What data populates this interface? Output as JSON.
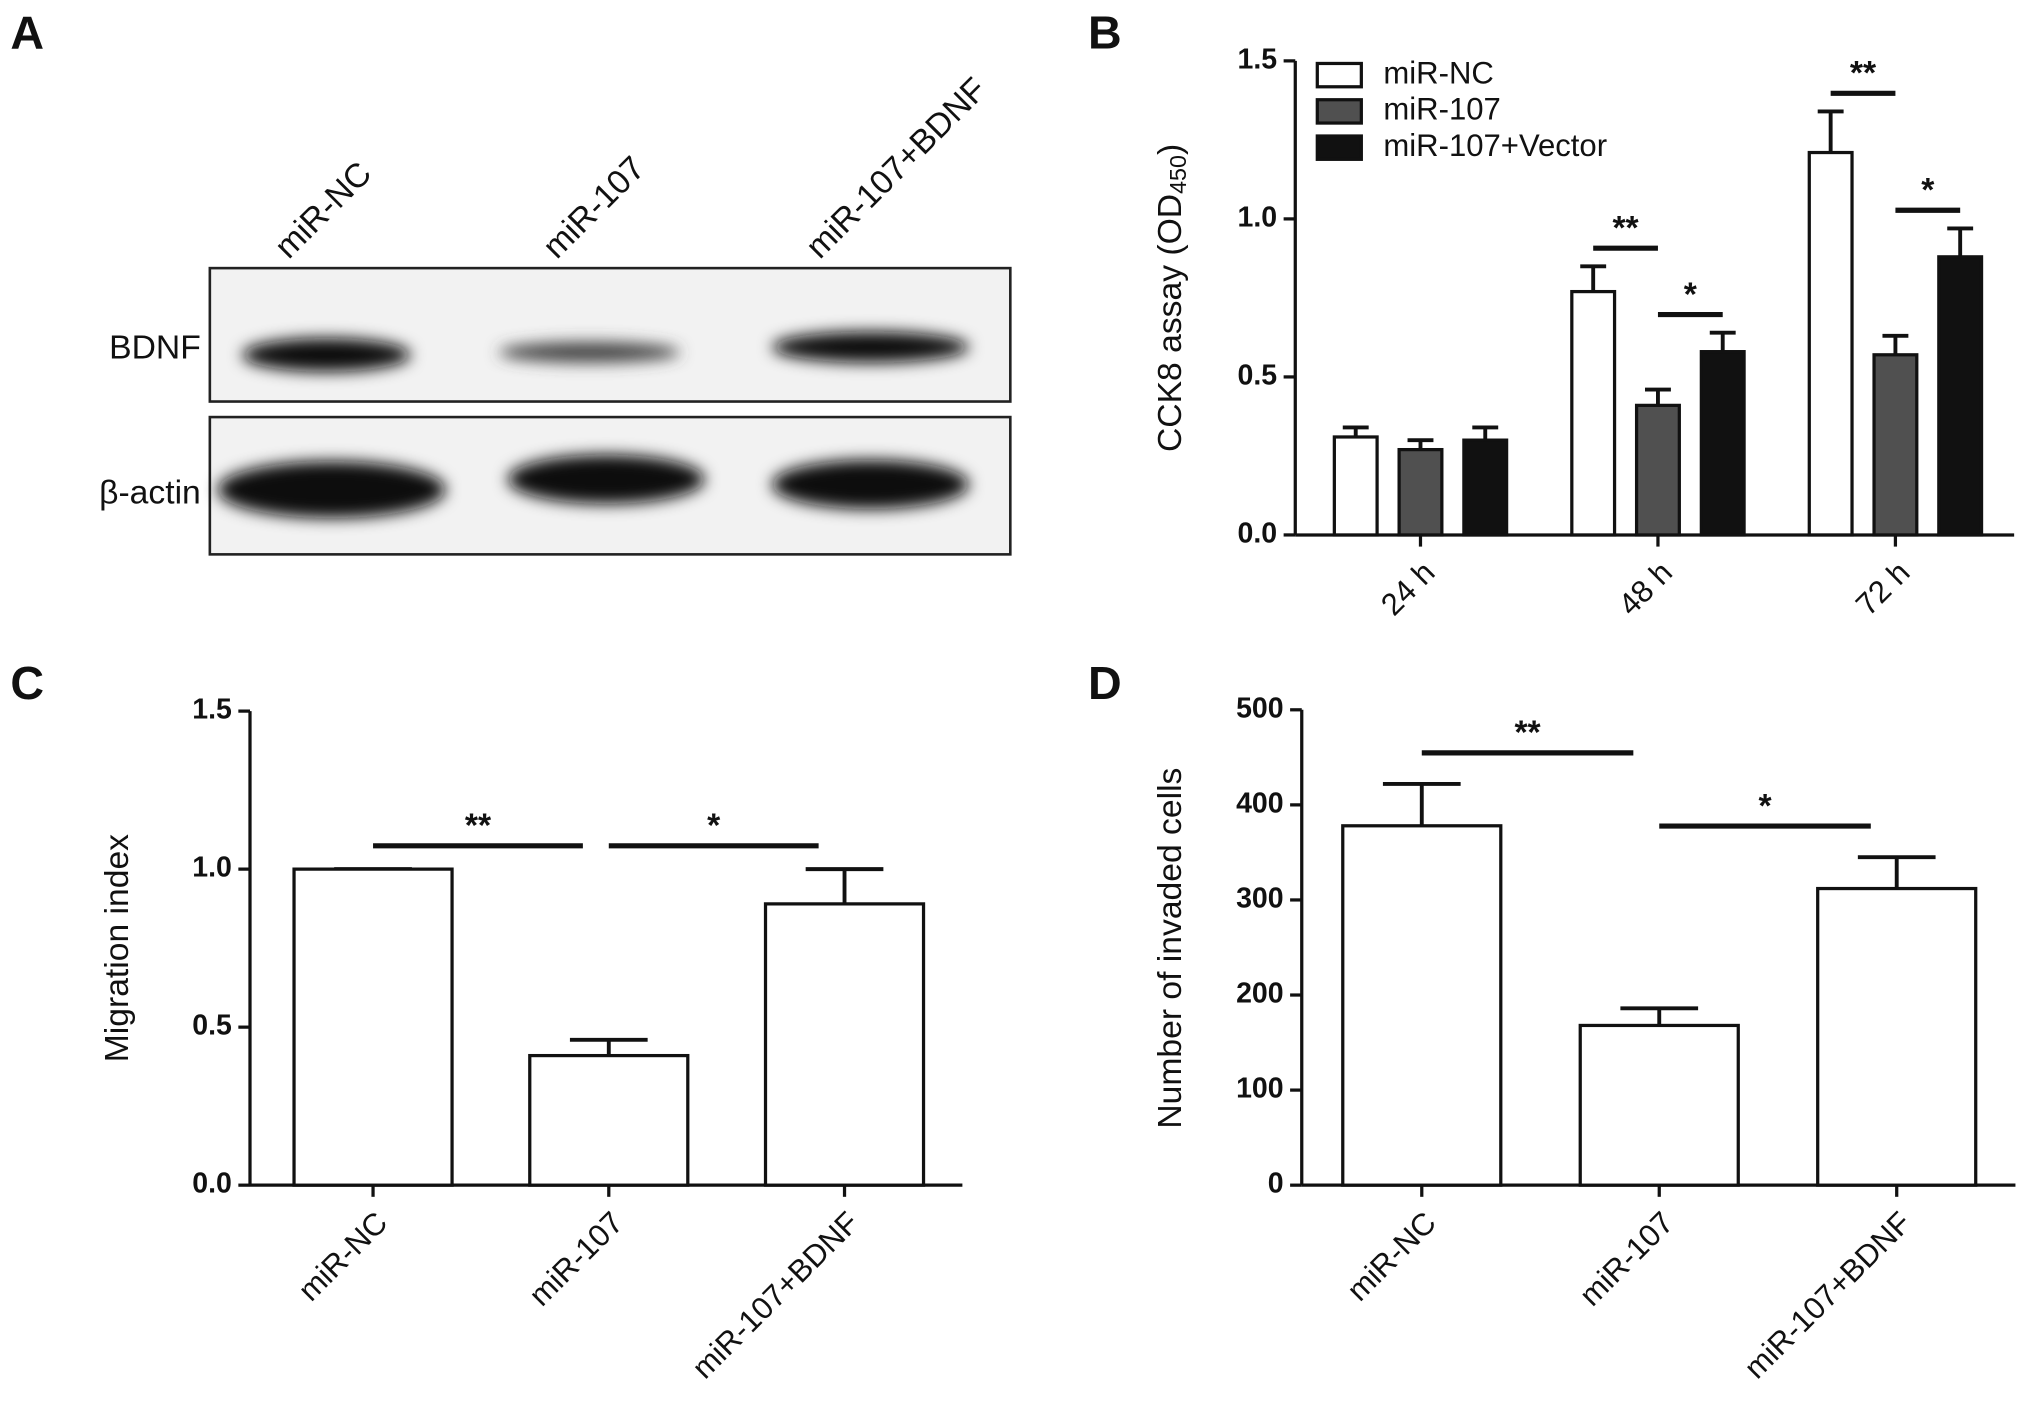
{
  "blot": {
    "panel_label": "A",
    "lanes": [
      "miR-NC",
      "miR-107",
      "miR-107+BDNF"
    ],
    "rows": [
      "BDNF",
      "β-actin"
    ]
  },
  "chart_data": [
    {
      "type": "bar",
      "panel_label": "B",
      "ylabel": "CCK8 assay (OD",
      "ylabel_sub": "450",
      "ylabel_end": ")",
      "categories": [
        "24 h",
        "48 h",
        "72 h"
      ],
      "series": [
        {
          "name": "miR-NC",
          "color": "#ffffff",
          "values": [
            0.31,
            0.77,
            1.21
          ],
          "errors": [
            0.03,
            0.08,
            0.13
          ]
        },
        {
          "name": "miR-107",
          "color": "#505050",
          "values": [
            0.27,
            0.41,
            0.57
          ],
          "errors": [
            0.03,
            0.05,
            0.06
          ]
        },
        {
          "name": "miR-107+Vector",
          "color": "#111111",
          "values": [
            0.3,
            0.58,
            0.88
          ],
          "errors": [
            0.04,
            0.06,
            0.09
          ]
        }
      ],
      "ylim": [
        0,
        1.5
      ],
      "yticks": [
        {
          "value": 0,
          "label": "0.0"
        },
        0.5,
        {
          "value": 1,
          "label": "1.0"
        },
        1.5
      ],
      "annotations": [
        {
          "text": "**",
          "category": 1,
          "between": [
            0,
            1
          ]
        },
        {
          "text": "*",
          "category": 1,
          "between": [
            1,
            2
          ]
        },
        {
          "text": "**",
          "category": 2,
          "between": [
            0,
            1
          ]
        },
        {
          "text": "*",
          "category": 2,
          "between": [
            1,
            2
          ]
        }
      ]
    },
    {
      "type": "bar",
      "panel_label": "C",
      "ylabel": "Migration index",
      "categories": [
        "miR-NC",
        "miR-107",
        "miR-107+BDNF"
      ],
      "values": [
        1.0,
        0.41,
        0.89
      ],
      "errors": [
        0,
        0.05,
        0.11
      ],
      "color": "#ffffff",
      "ylim": [
        0,
        1.5
      ],
      "yticks": [
        {
          "value": 0,
          "label": "0.0"
        },
        0.5,
        {
          "value": 1,
          "label": "1.0"
        },
        1.5
      ],
      "annotations": [
        {
          "text": "**",
          "between": [
            0,
            1
          ]
        },
        {
          "text": "*",
          "between": [
            1,
            2
          ]
        }
      ]
    },
    {
      "type": "bar",
      "panel_label": "D",
      "ylabel": "Number of invaded cells",
      "categories": [
        "miR-NC",
        "miR-107",
        "miR-107+BDNF"
      ],
      "values": [
        378,
        168,
        312
      ],
      "errors": [
        44,
        18,
        33
      ],
      "color": "#ffffff",
      "ylim": [
        0,
        500
      ],
      "yticks": [
        0,
        100,
        200,
        300,
        400,
        500
      ],
      "annotations": [
        {
          "text": "**",
          "between": [
            0,
            1
          ]
        },
        {
          "text": "*",
          "between": [
            1,
            2
          ]
        }
      ]
    }
  ]
}
